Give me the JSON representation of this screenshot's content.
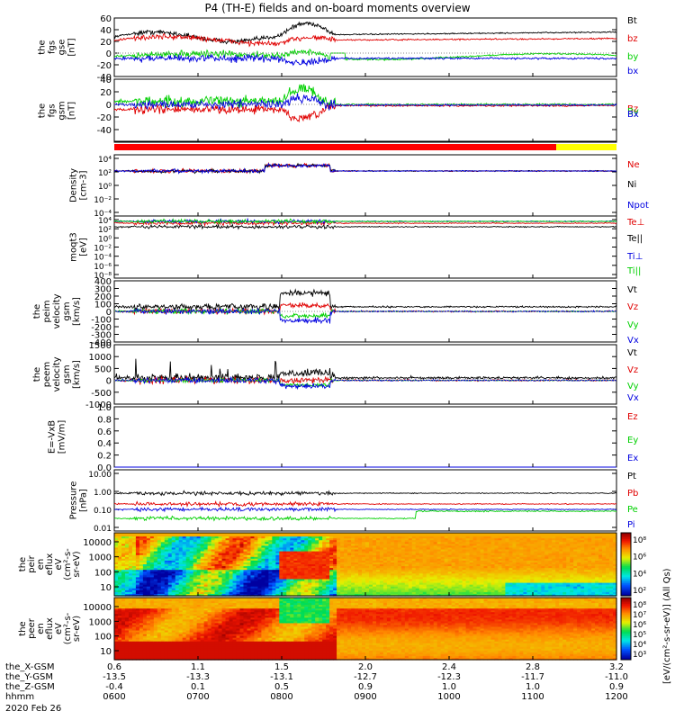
{
  "title": "P4 (TH-E) fields and on-board moments overview",
  "colors": {
    "black": "#000000",
    "red": "#e00000",
    "green": "#00d000",
    "blue": "#0000e0",
    "yellow": "#ffff00",
    "bar_red": "#ff0000"
  },
  "chart_data": [
    {
      "type": "line",
      "ylabel": [
        "the",
        "fgs",
        "gse",
        "[nT]"
      ],
      "ylim": [
        -40,
        60
      ],
      "yticks": [
        "60",
        "40",
        "20",
        "0",
        "-20",
        "-40"
      ],
      "yticks_values": [
        60,
        40,
        20,
        0,
        -20,
        -40
      ],
      "series": [
        {
          "name": "Bt",
          "color": "#000000"
        },
        {
          "name": "bz",
          "color": "#e00000"
        },
        {
          "name": "by",
          "color": "#00d000"
        },
        {
          "name": "bx",
          "color": "#0000e0"
        }
      ]
    },
    {
      "type": "line",
      "ylabel": [
        "the",
        "fgs",
        "gsm",
        "[nT]"
      ],
      "ylim": [
        -60,
        40
      ],
      "yticks": [
        "40",
        "20",
        "0",
        "-20",
        "-40"
      ],
      "yticks_values": [
        40,
        20,
        0,
        -20,
        -40
      ],
      "series": [
        {
          "name": "Bz",
          "color": "#e00000"
        },
        {
          "name": "By",
          "color": "#00d000"
        },
        {
          "name": "Bx",
          "color": "#0000e0"
        }
      ]
    },
    {
      "type": "line",
      "ylabel": [
        "Density",
        "[cm-3]"
      ],
      "log": true,
      "yticks": [
        "10⁴",
        "10²",
        "10⁰",
        "10⁻²",
        "10⁻⁴"
      ],
      "series": [
        {
          "name": "Ne",
          "color": "#e00000"
        },
        {
          "name": "Ni",
          "color": "#000000"
        },
        {
          "name": "Npot",
          "color": "#0000e0"
        }
      ]
    },
    {
      "type": "line",
      "ylabel": [
        "moqt3",
        "[eV]"
      ],
      "log": true,
      "yticks": [
        "10⁴",
        "10²",
        "10⁰",
        "10⁻²",
        "10⁻⁴",
        "10⁻⁶",
        "10⁻⁸"
      ],
      "series": [
        {
          "name": "Te⊥",
          "color": "#e00000"
        },
        {
          "name": "Te||",
          "color": "#000000"
        },
        {
          "name": "Ti⊥",
          "color": "#0000e0"
        },
        {
          "name": "Ti||",
          "color": "#00d000"
        }
      ]
    },
    {
      "type": "line",
      "ylabel": [
        "the",
        "peim",
        "velocity",
        "gsm",
        "[km/s]"
      ],
      "ylim": [
        -400,
        400
      ],
      "yticks": [
        "400",
        "300",
        "200",
        "100",
        "0",
        "-100",
        "-200",
        "-300",
        "-400"
      ],
      "yticks_values": [
        400,
        300,
        200,
        100,
        0,
        -100,
        -200,
        -300,
        -400
      ],
      "series": [
        {
          "name": "Vt",
          "color": "#000000"
        },
        {
          "name": "Vz",
          "color": "#e00000"
        },
        {
          "name": "Vy",
          "color": "#00d000"
        },
        {
          "name": "Vx",
          "color": "#0000e0"
        }
      ]
    },
    {
      "type": "line",
      "ylabel": [
        "the",
        "peem",
        "velocity",
        "gsm",
        "[km/s]"
      ],
      "ylim": [
        -1000,
        1500
      ],
      "yticks": [
        "1500",
        "1000",
        "500",
        "0",
        "-500",
        "-1000"
      ],
      "yticks_values": [
        1500,
        1000,
        500,
        0,
        -500,
        -1000
      ],
      "series": [
        {
          "name": "Vt",
          "color": "#000000"
        },
        {
          "name": "Vz",
          "color": "#e00000"
        },
        {
          "name": "Vy",
          "color": "#00d000"
        },
        {
          "name": "Vx",
          "color": "#0000e0"
        }
      ]
    },
    {
      "type": "line",
      "ylabel": [
        "E=-VxB",
        "[mV/m]"
      ],
      "ylim": [
        0.0,
        1.0
      ],
      "yticks": [
        "1.0",
        "0.8",
        "0.6",
        "0.4",
        "0.2",
        "0.0"
      ],
      "yticks_values": [
        1.0,
        0.8,
        0.6,
        0.4,
        0.2,
        0.0
      ],
      "series": [
        {
          "name": "Ez",
          "color": "#e00000"
        },
        {
          "name": "Ey",
          "color": "#00d000"
        },
        {
          "name": "Ex",
          "color": "#0000e0"
        }
      ]
    },
    {
      "type": "line",
      "ylabel": [
        "Pressure",
        "[nPa]"
      ],
      "log": true,
      "yticks": [
        "10.00",
        "1.00",
        "0.10",
        "0.01"
      ],
      "series": [
        {
          "name": "Pt",
          "color": "#000000"
        },
        {
          "name": "Pb",
          "color": "#e00000"
        },
        {
          "name": "Pe",
          "color": "#00d000"
        },
        {
          "name": "Pi",
          "color": "#0000e0"
        }
      ]
    },
    {
      "type": "heatmap",
      "ylabel": [
        "the",
        "peir",
        "en",
        "eflux",
        "eV",
        "(cm²-s-",
        "sr-eV)"
      ],
      "yticks": [
        "10000",
        "1000",
        "100",
        "10"
      ]
    },
    {
      "type": "heatmap",
      "ylabel": [
        "the",
        "peer",
        "en",
        "eflux",
        "eV",
        "(cm²-s-",
        "sr-eV)"
      ],
      "yticks": [
        "10000",
        "1000",
        "100",
        "10"
      ]
    }
  ],
  "colorbar": {
    "label": "[eV/(cm²-s-sr-eV)] (All Qs)",
    "upper_ticks": [
      "10⁸",
      "10⁶",
      "10⁴",
      "10²"
    ],
    "lower_ticks": [
      "10⁸",
      "10⁷",
      "10⁶",
      "10⁵",
      "10⁴",
      "10³"
    ]
  },
  "xaxis": {
    "row_labels": [
      "the_X-GSM",
      "the_Y-GSM",
      "the_Z-GSM",
      "hhmm",
      "2020 Feb 26"
    ],
    "columns": [
      [
        "0.6",
        "-13.5",
        "-0.4",
        "0600"
      ],
      [
        "1.1",
        "-13.3",
        "0.1",
        "0700"
      ],
      [
        "1.5",
        "-13.1",
        "0.5",
        "0800"
      ],
      [
        "2.0",
        "-12.7",
        "0.9",
        "0900"
      ],
      [
        "2.4",
        "-12.3",
        "1.0",
        "1000"
      ],
      [
        "2.8",
        "-11.7",
        "1.0",
        "1100"
      ],
      [
        "3.2",
        "-11.0",
        "0.9",
        "1200"
      ]
    ]
  }
}
